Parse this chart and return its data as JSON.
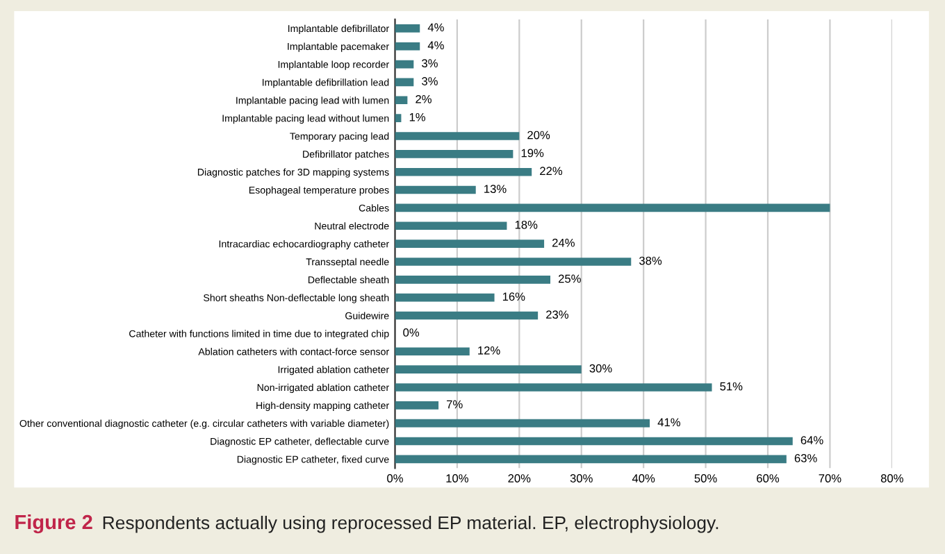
{
  "chart_data": {
    "type": "bar",
    "orientation": "horizontal",
    "categories": [
      "Implantable defibrillator",
      "Implantable pacemaker",
      "Implantable loop recorder",
      "Implantable defibrillation lead",
      "Implantable pacing lead with lumen",
      "Implantable pacing lead without lumen",
      "Temporary pacing lead",
      "Defibrillator patches",
      "Diagnostic patches for 3D mapping systems",
      "Esophageal temperature probes",
      "Cables",
      "Neutral electrode",
      "Intracardiac echocardiography catheter",
      "Transseptal needle",
      "Deflectable sheath",
      "Short sheaths Non-deflectable long sheath",
      "Guidewire",
      "Catheter with functions limited in time due to integrated chip",
      "Ablation catheters with contact-force sensor",
      "Irrigated ablation catheter",
      "Non-irrigated ablation catheter",
      "High-density mapping catheter",
      "Other conventional diagnostic catheter (e.g. circular catheters with variable diameter)",
      "Diagnostic EP catheter, deflectable curve",
      "Diagnostic EP catheter, fixed curve"
    ],
    "values": [
      4,
      4,
      3,
      3,
      2,
      1,
      20,
      19,
      22,
      13,
      70,
      18,
      24,
      38,
      25,
      16,
      23,
      0,
      12,
      30,
      51,
      7,
      41,
      64,
      63
    ],
    "value_labels": [
      "4%",
      "4%",
      "3%",
      "3%",
      "2%",
      "1%",
      "20%",
      "19%",
      "22%",
      "13%",
      null,
      "18%",
      "24%",
      "38%",
      "25%",
      "16%",
      "23%",
      "0%",
      "12%",
      "30%",
      "51%",
      "7%",
      "41%",
      "64%",
      "63%"
    ],
    "color": "#3a7c84",
    "xlim": [
      0,
      80
    ],
    "xticks": [
      {
        "value": 0,
        "label": "0%"
      },
      {
        "value": 10,
        "label": "10%"
      },
      {
        "value": 20,
        "label": "20%"
      },
      {
        "value": 30,
        "label": "30%"
      },
      {
        "value": 40,
        "label": "40%"
      },
      {
        "value": 50,
        "label": "50%"
      },
      {
        "value": 60,
        "label": "60%"
      },
      {
        "value": 70,
        "label": "70%"
      },
      {
        "value": 80,
        "label": "80%"
      }
    ],
    "grid": "x",
    "annotations": [
      "Figure 2",
      "Respondents actually using reprocessed EP material. EP, electrophysiology."
    ]
  }
}
